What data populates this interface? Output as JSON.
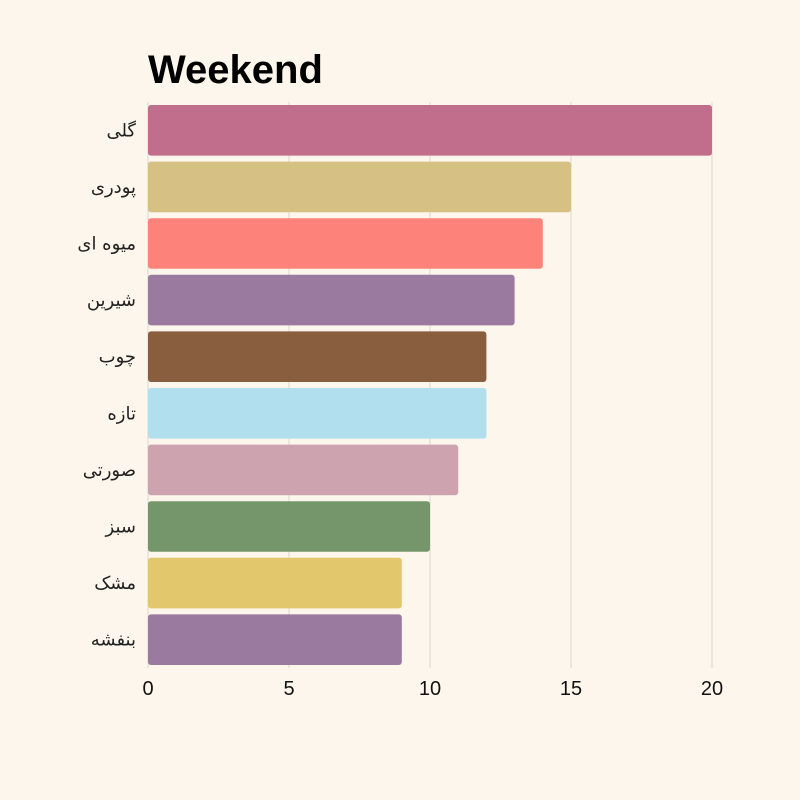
{
  "chart_data": {
    "type": "bar",
    "orientation": "horizontal",
    "title": "Weekend",
    "xlabel": "",
    "ylabel": "",
    "categories": [
      "گلی",
      "پودری",
      "میوه ای",
      "شیرین",
      "چوب",
      "تازه",
      "صورتی",
      "سبز",
      "مشک",
      "بنفشه"
    ],
    "values": [
      20,
      15,
      14,
      13,
      12,
      12,
      11,
      10,
      9,
      9
    ],
    "colors": [
      "#c06e8c",
      "#d6c083",
      "#fd8279",
      "#9a7a9e",
      "#885e3f",
      "#b1dfee",
      "#cda3b0",
      "#75966b",
      "#e3c76d",
      "#9a7a9e"
    ],
    "xlim": [
      0,
      20
    ],
    "xticks": [
      "0",
      "5",
      "10",
      "15",
      "20"
    ],
    "grid": true,
    "legend": "none"
  }
}
